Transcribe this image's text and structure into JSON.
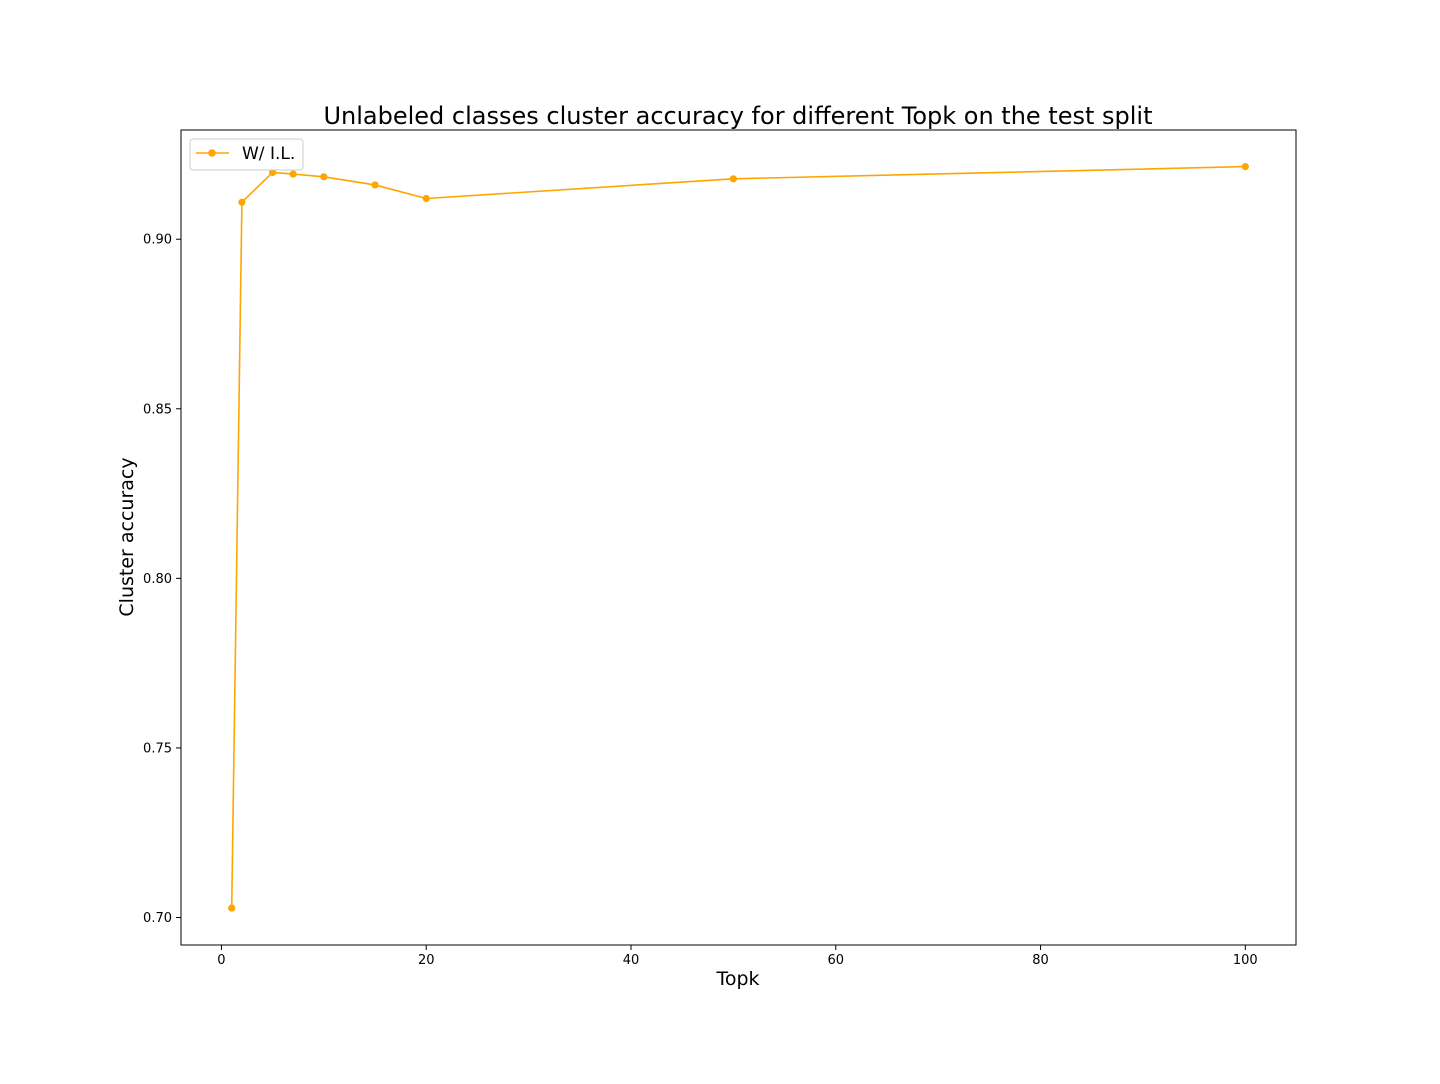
{
  "chart_data": {
    "type": "line",
    "title": "Unlabeled classes cluster accuracy for different Topk on the test split",
    "xlabel": "Topk",
    "ylabel": "Cluster accuracy",
    "xlim": [
      -3.95,
      104.95
    ],
    "ylim": [
      0.6919,
      0.9322
    ],
    "xticks": [
      0,
      20,
      40,
      60,
      80,
      100
    ],
    "xtick_labels": [
      "0",
      "20",
      "40",
      "60",
      "80",
      "100"
    ],
    "yticks": [
      0.7,
      0.75,
      0.8,
      0.85,
      0.9
    ],
    "ytick_labels": [
      "0.70",
      "0.75",
      "0.80",
      "0.85",
      "0.90"
    ],
    "grid": false,
    "legend_position": "upper left",
    "series": [
      {
        "name": "W/ I.L.",
        "color": "#ffa500",
        "marker": "circle",
        "x": [
          1,
          2,
          5,
          7,
          10,
          15,
          20,
          50,
          100
        ],
        "y": [
          0.7028,
          0.9109,
          0.9197,
          0.9192,
          0.9184,
          0.916,
          0.912,
          0.9178,
          0.9214
        ]
      }
    ]
  }
}
